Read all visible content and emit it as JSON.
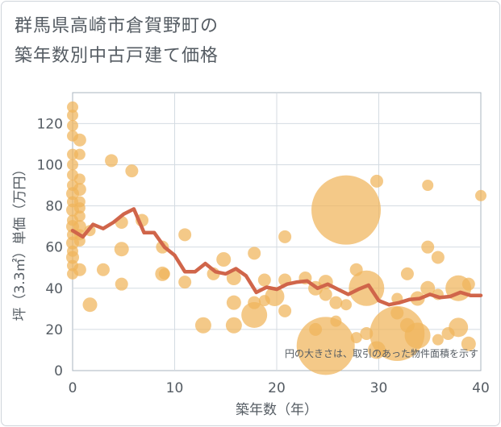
{
  "chart_data": {
    "type": "scatter",
    "title_line1": "群馬県高崎市倉賀野町の",
    "title_line2": "築年数別中古戸建て価格",
    "xlabel": "築年数（年）",
    "ylabel": "坪（3.3㎡）単価（万円）",
    "xlim": [
      0,
      40
    ],
    "ylim": [
      0,
      135
    ],
    "xticks": [
      0,
      10,
      20,
      30,
      40
    ],
    "yticks": [
      0,
      20,
      40,
      60,
      80,
      100,
      120
    ],
    "note": "円の大きさは、取引のあった物件面積を示す",
    "bubble_color": "#f0b45a",
    "line_color": "#d0654a",
    "points": [
      {
        "x": 0,
        "y": 128,
        "s": 7
      },
      {
        "x": 0,
        "y": 124,
        "s": 7
      },
      {
        "x": 0,
        "y": 119,
        "s": 7
      },
      {
        "x": 0,
        "y": 114,
        "s": 7
      },
      {
        "x": 0,
        "y": 105,
        "s": 7
      },
      {
        "x": 0,
        "y": 100,
        "s": 7
      },
      {
        "x": 0,
        "y": 95,
        "s": 7
      },
      {
        "x": 0,
        "y": 90,
        "s": 7
      },
      {
        "x": 0,
        "y": 86,
        "s": 8
      },
      {
        "x": 0,
        "y": 82,
        "s": 7
      },
      {
        "x": 0,
        "y": 78,
        "s": 8
      },
      {
        "x": 0,
        "y": 73,
        "s": 7
      },
      {
        "x": 0,
        "y": 70,
        "s": 8
      },
      {
        "x": 0,
        "y": 66,
        "s": 7
      },
      {
        "x": 0,
        "y": 62,
        "s": 8
      },
      {
        "x": 0,
        "y": 58,
        "s": 7
      },
      {
        "x": 0,
        "y": 55,
        "s": 8
      },
      {
        "x": 0,
        "y": 51,
        "s": 7
      },
      {
        "x": 0,
        "y": 47,
        "s": 7
      },
      {
        "x": 0.7,
        "y": 112,
        "s": 8
      },
      {
        "x": 0.7,
        "y": 105,
        "s": 7
      },
      {
        "x": 0.7,
        "y": 93,
        "s": 7
      },
      {
        "x": 0.7,
        "y": 88,
        "s": 8
      },
      {
        "x": 0.7,
        "y": 82,
        "s": 7
      },
      {
        "x": 0.7,
        "y": 79,
        "s": 7
      },
      {
        "x": 0.7,
        "y": 75,
        "s": 7
      },
      {
        "x": 0.7,
        "y": 70,
        "s": 8
      },
      {
        "x": 0.7,
        "y": 66,
        "s": 7
      },
      {
        "x": 0.7,
        "y": 63,
        "s": 7
      },
      {
        "x": 0.7,
        "y": 49,
        "s": 8
      },
      {
        "x": 1.7,
        "y": 32,
        "s": 9
      },
      {
        "x": 1.7,
        "y": 68,
        "s": 7
      },
      {
        "x": 3,
        "y": 49,
        "s": 8
      },
      {
        "x": 3.8,
        "y": 102,
        "s": 8
      },
      {
        "x": 4.8,
        "y": 72,
        "s": 8
      },
      {
        "x": 4.8,
        "y": 59,
        "s": 9
      },
      {
        "x": 4.8,
        "y": 42,
        "s": 8
      },
      {
        "x": 5.8,
        "y": 97,
        "s": 8
      },
      {
        "x": 6.8,
        "y": 73,
        "s": 8
      },
      {
        "x": 8.8,
        "y": 60,
        "s": 8
      },
      {
        "x": 8.8,
        "y": 47,
        "s": 9
      },
      {
        "x": 9,
        "y": 47,
        "s": 7
      },
      {
        "x": 11,
        "y": 66,
        "s": 8
      },
      {
        "x": 11,
        "y": 43,
        "s": 8
      },
      {
        "x": 12.8,
        "y": 22,
        "s": 10
      },
      {
        "x": 13.8,
        "y": 47,
        "s": 8
      },
      {
        "x": 14.8,
        "y": 54,
        "s": 9
      },
      {
        "x": 15.8,
        "y": 45,
        "s": 9
      },
      {
        "x": 15.8,
        "y": 33,
        "s": 9
      },
      {
        "x": 15.8,
        "y": 22,
        "s": 10
      },
      {
        "x": 17.8,
        "y": 57,
        "s": 8
      },
      {
        "x": 17.8,
        "y": 33,
        "s": 8
      },
      {
        "x": 17.8,
        "y": 27,
        "s": 16
      },
      {
        "x": 18.8,
        "y": 44,
        "s": 8
      },
      {
        "x": 18.8,
        "y": 34,
        "s": 7
      },
      {
        "x": 19.8,
        "y": 36,
        "s": 12
      },
      {
        "x": 20.8,
        "y": 65,
        "s": 8
      },
      {
        "x": 20.8,
        "y": 44,
        "s": 8
      },
      {
        "x": 20.8,
        "y": 29,
        "s": 8
      },
      {
        "x": 22.8,
        "y": 45,
        "s": 8
      },
      {
        "x": 23.8,
        "y": 40,
        "s": 9
      },
      {
        "x": 23.8,
        "y": 20,
        "s": 8
      },
      {
        "x": 24.8,
        "y": 43,
        "s": 9
      },
      {
        "x": 24.8,
        "y": 37,
        "s": 8
      },
      {
        "x": 24.8,
        "y": 12,
        "s": 36
      },
      {
        "x": 25.8,
        "y": 33,
        "s": 8
      },
      {
        "x": 25.8,
        "y": 24,
        "s": 7
      },
      {
        "x": 26.8,
        "y": 32,
        "s": 7
      },
      {
        "x": 26.8,
        "y": 78,
        "s": 43
      },
      {
        "x": 27.8,
        "y": 49,
        "s": 8
      },
      {
        "x": 27.8,
        "y": 16,
        "s": 7
      },
      {
        "x": 28.8,
        "y": 40,
        "s": 22
      },
      {
        "x": 28.8,
        "y": 18,
        "s": 8
      },
      {
        "x": 29.8,
        "y": 92,
        "s": 8
      },
      {
        "x": 29.8,
        "y": 10,
        "s": 11
      },
      {
        "x": 31.8,
        "y": 18,
        "s": 34
      },
      {
        "x": 31.8,
        "y": 28,
        "s": 8
      },
      {
        "x": 31.8,
        "y": 35,
        "s": 7
      },
      {
        "x": 32.8,
        "y": 47,
        "s": 8
      },
      {
        "x": 32.8,
        "y": 22,
        "s": 9
      },
      {
        "x": 33.8,
        "y": 17,
        "s": 16
      },
      {
        "x": 33.8,
        "y": 35,
        "s": 9
      },
      {
        "x": 34.8,
        "y": 90,
        "s": 7
      },
      {
        "x": 34.8,
        "y": 60,
        "s": 8
      },
      {
        "x": 34.8,
        "y": 40,
        "s": 9
      },
      {
        "x": 35.8,
        "y": 55,
        "s": 8
      },
      {
        "x": 35.8,
        "y": 37,
        "s": 7
      },
      {
        "x": 35.8,
        "y": 15,
        "s": 7
      },
      {
        "x": 36.8,
        "y": 18,
        "s": 8
      },
      {
        "x": 37.8,
        "y": 40,
        "s": 16
      },
      {
        "x": 37.8,
        "y": 21,
        "s": 12
      },
      {
        "x": 38.8,
        "y": 42,
        "s": 8
      },
      {
        "x": 38.8,
        "y": 13,
        "s": 9
      },
      {
        "x": 40,
        "y": 85,
        "s": 7
      }
    ],
    "trend": [
      [
        0,
        68
      ],
      [
        1,
        65
      ],
      [
        2,
        71
      ],
      [
        3,
        69
      ],
      [
        4,
        72
      ],
      [
        5,
        76
      ],
      [
        6,
        78.5
      ],
      [
        7,
        67
      ],
      [
        8,
        67
      ],
      [
        9,
        60
      ],
      [
        10,
        56
      ],
      [
        11,
        48
      ],
      [
        12,
        48
      ],
      [
        13,
        52
      ],
      [
        14,
        48
      ],
      [
        15,
        47
      ],
      [
        16,
        49.5
      ],
      [
        17,
        46
      ],
      [
        18,
        38
      ],
      [
        19,
        40.5
      ],
      [
        20,
        39.5
      ],
      [
        21,
        42
      ],
      [
        22,
        43
      ],
      [
        23,
        43.5
      ],
      [
        24,
        40
      ],
      [
        25,
        42
      ],
      [
        26,
        39.5
      ],
      [
        27,
        37
      ],
      [
        28,
        39.5
      ],
      [
        29,
        41.5
      ],
      [
        30,
        34
      ],
      [
        31,
        32
      ],
      [
        32,
        33
      ],
      [
        33,
        34.5
      ],
      [
        34,
        35
      ],
      [
        35,
        37
      ],
      [
        36,
        35.5
      ],
      [
        37,
        36
      ],
      [
        38,
        38
      ],
      [
        39,
        36.5
      ],
      [
        40,
        36.5
      ]
    ]
  }
}
